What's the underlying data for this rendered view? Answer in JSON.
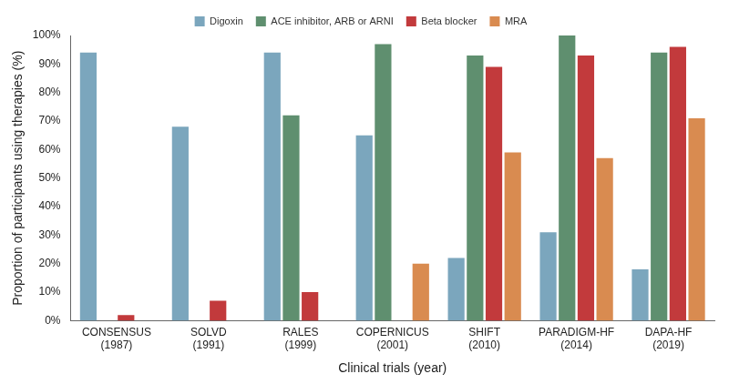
{
  "chart_data": {
    "type": "bar",
    "categories": [
      [
        "CONSENSUS",
        "(1987)"
      ],
      [
        "SOLVD",
        "(1991)"
      ],
      [
        "RALES",
        "(1999)"
      ],
      [
        "COPERNICUS",
        "(2001)"
      ],
      [
        "SHIFT",
        "(2010)"
      ],
      [
        "PARADIGM-HF",
        "(2014)"
      ],
      [
        "DAPA-HF",
        "(2019)"
      ]
    ],
    "series": [
      {
        "name": "Digoxin",
        "color": "#7ba6bd",
        "values": [
          94,
          68,
          94,
          65,
          22,
          31,
          18
        ]
      },
      {
        "name": "ACE inhibitor, ARB or ARNI",
        "color": "#5f8f6f",
        "values": [
          null,
          null,
          72,
          97,
          93,
          100,
          94
        ]
      },
      {
        "name": "Beta blocker",
        "color": "#c23a3c",
        "values": [
          2,
          7,
          10,
          null,
          89,
          93,
          96
        ]
      },
      {
        "name": "MRA",
        "color": "#d98b50",
        "values": [
          null,
          null,
          null,
          20,
          59,
          57,
          71
        ]
      }
    ],
    "x_label": "Clinical trials (year)",
    "y_label": "Proportion of participants using therapies (%)",
    "ylim": [
      0,
      100
    ],
    "yticks": [
      {
        "value": 0,
        "label": "0%"
      },
      {
        "value": 10,
        "label": "10%"
      },
      {
        "value": 20,
        "label": "20%"
      },
      {
        "value": 30,
        "label": "30%"
      },
      {
        "value": 40,
        "label": "40%"
      },
      {
        "value": 50,
        "label": "50%"
      },
      {
        "value": 60,
        "label": "60%"
      },
      {
        "value": 70,
        "label": "70%"
      },
      {
        "value": 80,
        "label": "80%"
      },
      {
        "value": 90,
        "label": "90%"
      },
      {
        "value": 100,
        "label": "100%"
      }
    ],
    "grid": false,
    "legend": "top"
  }
}
